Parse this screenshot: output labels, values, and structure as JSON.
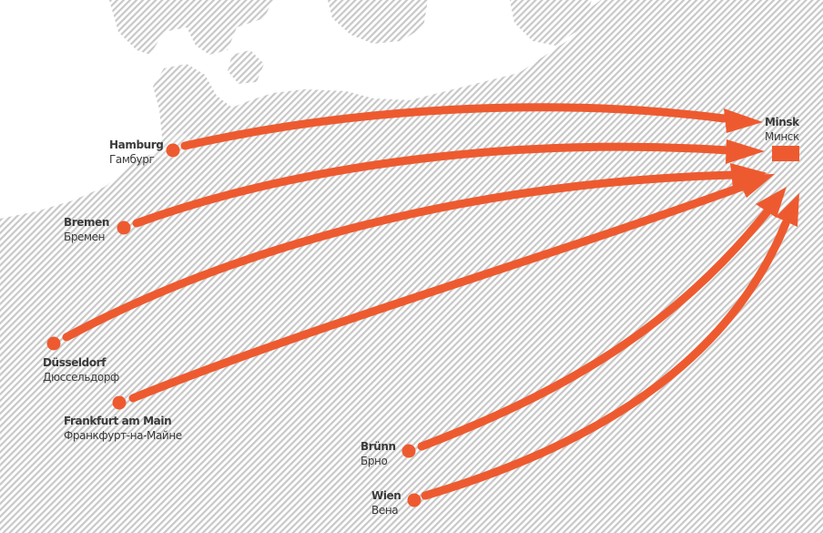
{
  "colors": {
    "route": "#ee5a2f",
    "land_hatch": "#c8c8c8",
    "text": "#3a3a3a",
    "background": "#ffffff"
  },
  "destination": {
    "name_de": "Minsk",
    "name_ru": "Минск",
    "marker": "square"
  },
  "origins": [
    {
      "key": "hamburg",
      "name_de": "Hamburg",
      "name_ru": "Гамбург",
      "marker": "dot"
    },
    {
      "key": "bremen",
      "name_de": "Bremen",
      "name_ru": "Бремен",
      "marker": "dot"
    },
    {
      "key": "dusseldorf",
      "name_de": "Düsseldorf",
      "name_ru": "Дюссельдорф",
      "marker": "dot"
    },
    {
      "key": "frankfurt",
      "name_de": "Frankfurt am Main",
      "name_ru": "Франкфурт-на-Майне",
      "marker": "dot"
    },
    {
      "key": "brunn",
      "name_de": "Brünn",
      "name_ru": "Брно",
      "marker": "dot"
    },
    {
      "key": "wien",
      "name_de": "Wien",
      "name_ru": "Вена",
      "marker": "dot"
    }
  ]
}
